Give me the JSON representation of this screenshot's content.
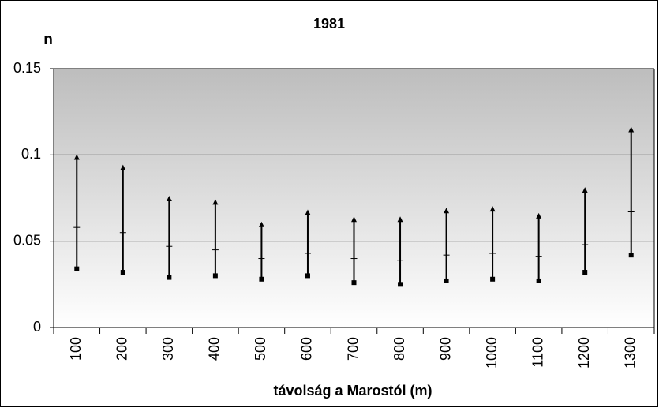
{
  "chart_data": {
    "type": "hilo",
    "title": "1981",
    "y_label": "n",
    "x_label": "távolság a Marostól (m)",
    "categories": [
      "100",
      "200",
      "300",
      "400",
      "500",
      "600",
      "700",
      "800",
      "900",
      "1000",
      "1100",
      "1200",
      "1300"
    ],
    "high": [
      0.099,
      0.093,
      0.075,
      0.073,
      0.06,
      0.067,
      0.063,
      0.063,
      0.068,
      0.069,
      0.065,
      0.08,
      0.115
    ],
    "low": [
      0.034,
      0.032,
      0.029,
      0.03,
      0.028,
      0.03,
      0.026,
      0.025,
      0.027,
      0.028,
      0.027,
      0.032,
      0.042
    ],
    "close": [
      0.058,
      0.055,
      0.047,
      0.045,
      0.04,
      0.043,
      0.04,
      0.039,
      0.042,
      0.043,
      0.041,
      0.048,
      0.067
    ],
    "color": "#000000",
    "ylim": [
      0,
      0.15
    ],
    "yticks": [
      0,
      0.05,
      0.1,
      0.15
    ],
    "grid": true
  }
}
